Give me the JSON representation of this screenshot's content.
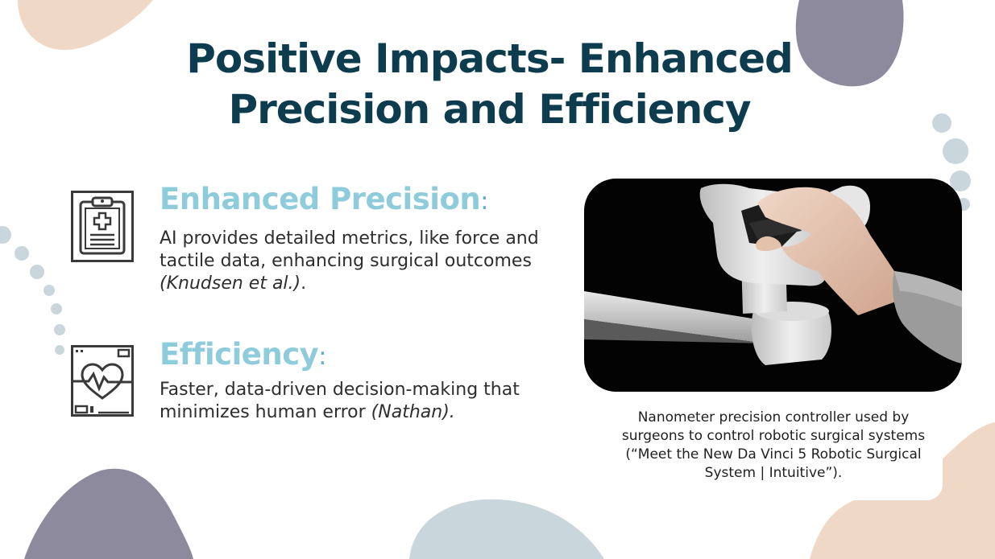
{
  "slide": {
    "title_line1": "Positive Impacts- Enhanced",
    "title_line2": "Precision and Efficiency",
    "sections": [
      {
        "icon": "clipboard-medical-icon",
        "heading": "Enhanced Precision",
        "colon": ":",
        "body_line1": "AI provides detailed metrics, like force and",
        "body_line2": "tactile data, enhancing surgical outcomes",
        "citation": "(Knudsen et al.)",
        "citation_end": "."
      },
      {
        "icon": "heart-monitor-icon",
        "heading": "Efficiency",
        "colon": ":",
        "body_line1": "Faster, data-driven decision-making that",
        "body_line2_prefix": "minimizes human error ",
        "citation": "(Nathan)."
      }
    ],
    "image": {
      "description_icon": "robotic-controller-photo",
      "caption": "Nanometer precision controller used by surgeons to control robotic surgical systems (“Meet the New Da Vinci 5 Robotic Surgical System | Intuitive”)."
    },
    "colors": {
      "title": "#0d3c4f",
      "heading": "#8ecbdb",
      "blob_peach": "#efd8c5",
      "blob_slate": "#8e8a9e",
      "blob_mist": "#c9d7dd"
    }
  }
}
